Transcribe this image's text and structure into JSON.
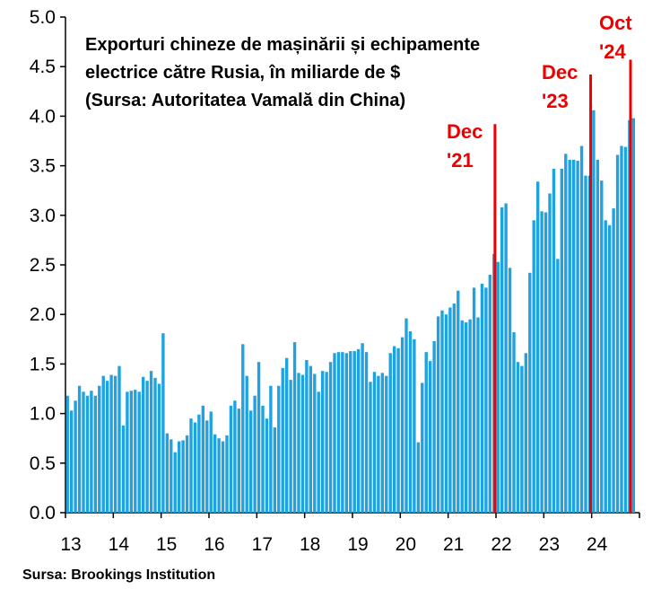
{
  "chart_data": {
    "type": "bar",
    "title_lines": [
      "Exporturi chineze de mașinării și echipamente",
      "electrice către Rusia, în miliarde de $",
      "(Sursa: Autoritatea Vamală din China)"
    ],
    "source": "Sursa: Brookings Institution",
    "xlabel": "",
    "ylabel": "",
    "ylim": [
      0,
      5
    ],
    "y_ticks": [
      "0.0",
      "0.5",
      "1.0",
      "1.5",
      "2.0",
      "2.5",
      "3.0",
      "3.5",
      "4.0",
      "4.5",
      "5.0"
    ],
    "x_tick_labels": [
      "13",
      "14",
      "15",
      "16",
      "17",
      "18",
      "19",
      "20",
      "21",
      "22",
      "23",
      "24"
    ],
    "grid": false,
    "legend": "none",
    "series": [
      {
        "start_month": "2013-01",
        "color": "#1fa2e0",
        "values": [
          1.18,
          1.03,
          1.13,
          1.28,
          1.22,
          1.18,
          1.23,
          1.18,
          1.28,
          1.38,
          1.33,
          1.39,
          1.38,
          1.48,
          0.88,
          1.22,
          1.23,
          1.24,
          1.22,
          1.37,
          1.33,
          1.43,
          1.36,
          1.3,
          1.81,
          0.8,
          0.74,
          0.61,
          0.72,
          0.73,
          0.78,
          0.95,
          0.91,
          0.99,
          1.08,
          0.93,
          1.02,
          0.79,
          0.75,
          0.72,
          0.78,
          1.08,
          1.13,
          1.05,
          1.7,
          1.38,
          1.03,
          1.18,
          1.52,
          1.08,
          0.95,
          1.28,
          0.86,
          1.28,
          1.46,
          1.56,
          1.34,
          1.72,
          1.41,
          1.39,
          1.54,
          1.48,
          1.4,
          1.22,
          1.43,
          1.42,
          1.52,
          1.61,
          1.62,
          1.62,
          1.61,
          1.63,
          1.63,
          1.65,
          1.71,
          1.62,
          1.32,
          1.42,
          1.38,
          1.41,
          1.38,
          1.61,
          1.68,
          1.66,
          1.77,
          1.96,
          1.83,
          1.75,
          0.71,
          1.31,
          1.62,
          1.53,
          1.73,
          1.98,
          2.04,
          2.0,
          2.07,
          2.11,
          2.24,
          1.94,
          1.92,
          1.95,
          2.27,
          1.97,
          2.31,
          2.27,
          2.4,
          2.61,
          2.53,
          3.08,
          3.12,
          2.47,
          1.82,
          1.52,
          1.48,
          1.61,
          2.42,
          2.95,
          3.34,
          3.04,
          3.03,
          3.22,
          3.47,
          2.56,
          3.47,
          3.62,
          3.56,
          3.56,
          3.55,
          3.7,
          3.4,
          3.4,
          4.06,
          3.56,
          3.35,
          2.95,
          2.9,
          3.07,
          3.61,
          3.7,
          3.69,
          3.96,
          3.98
        ]
      }
    ],
    "markers": [
      {
        "label_lines": [
          "Dec",
          "'21"
        ],
        "month_index": 107,
        "top_value": 3.92,
        "color": "#ee0000"
      },
      {
        "label_lines": [
          "Dec",
          "'23"
        ],
        "month_index": 131,
        "top_value": 4.42,
        "color": "#ee0000"
      },
      {
        "label_lines": [
          "Oct",
          "'24"
        ],
        "month_index": 141,
        "top_value": 4.57,
        "color": "#ee0000"
      }
    ]
  }
}
